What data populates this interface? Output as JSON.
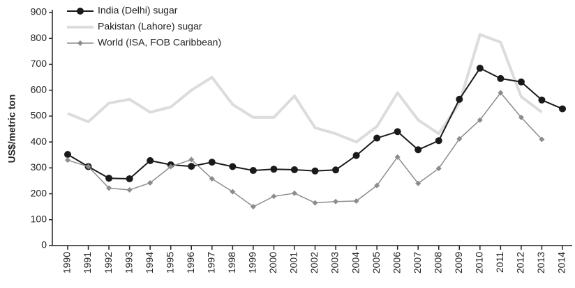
{
  "chart_data": {
    "type": "line",
    "y_label": "US$/metric ton",
    "categories": [
      "1990",
      "1991",
      "1992",
      "1993",
      "1994",
      "1995",
      "1996",
      "1997",
      "1998",
      "1999",
      "2000",
      "2001",
      "2002",
      "2003",
      "2004",
      "2005",
      "2006",
      "2007",
      "2008",
      "2009",
      "2010",
      "2011",
      "2012",
      "2013",
      "2014"
    ],
    "series": [
      {
        "name": "India (Delhi) sugar",
        "color": "#1a1a1a",
        "marker": "circle",
        "line_width": 2,
        "values": [
          352,
          305,
          260,
          258,
          328,
          312,
          306,
          322,
          305,
          290,
          295,
          293,
          288,
          292,
          348,
          415,
          440,
          370,
          405,
          565,
          685,
          645,
          632,
          562,
          528
        ]
      },
      {
        "name": "Pakistan (Lahore) sugar",
        "color": "#dcdcdc",
        "marker": "none",
        "line_width": 4,
        "values": [
          510,
          478,
          550,
          565,
          515,
          535,
          600,
          650,
          545,
          495,
          495,
          578,
          455,
          432,
          400,
          460,
          590,
          485,
          432,
          550,
          815,
          785,
          575,
          515,
          null
        ]
      },
      {
        "name": "World (ISA, FOB Caribbean)",
        "color": "#8c8c8c",
        "marker": "diamond",
        "line_width": 1.5,
        "values": [
          330,
          305,
          222,
          215,
          242,
          305,
          332,
          258,
          208,
          150,
          190,
          202,
          165,
          170,
          172,
          232,
          342,
          240,
          298,
          412,
          485,
          590,
          495,
          410,
          null
        ]
      }
    ],
    "ylim": [
      0,
      900
    ],
    "yticks": [
      0,
      100,
      200,
      300,
      400,
      500,
      600,
      700,
      800,
      900
    ],
    "grid": false
  }
}
